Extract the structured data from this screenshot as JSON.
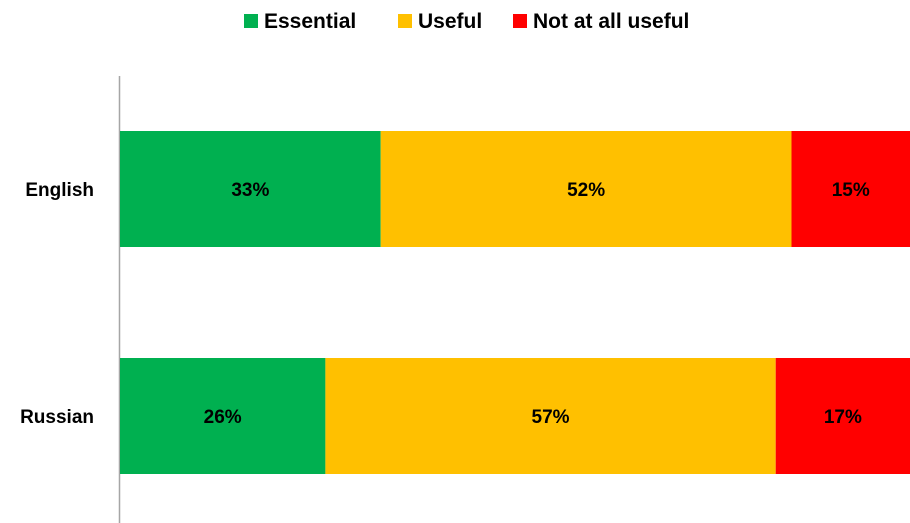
{
  "chart_data": {
    "type": "bar",
    "orientation": "horizontal",
    "stacked": true,
    "percent_stacked": true,
    "categories": [
      "English",
      "Russian"
    ],
    "series": [
      {
        "name": "Essential",
        "values": [
          33,
          26
        ],
        "labels": [
          "33%",
          "26%"
        ],
        "color": "#00b050"
      },
      {
        "name": "Useful",
        "values": [
          52,
          57
        ],
        "labels": [
          "52%",
          "57%"
        ],
        "color": "#ffc000"
      },
      {
        "name": "Not at all useful",
        "values": [
          15,
          17
        ],
        "labels": [
          "15%",
          "17%"
        ],
        "color": "#ff0000"
      }
    ],
    "title": "",
    "xlabel": "",
    "ylabel": "",
    "xlim": [
      0,
      100
    ],
    "grid": false,
    "legend_position": "top"
  },
  "colors": {
    "axis_line": "#a6a6a6",
    "background": "#ffffff"
  }
}
